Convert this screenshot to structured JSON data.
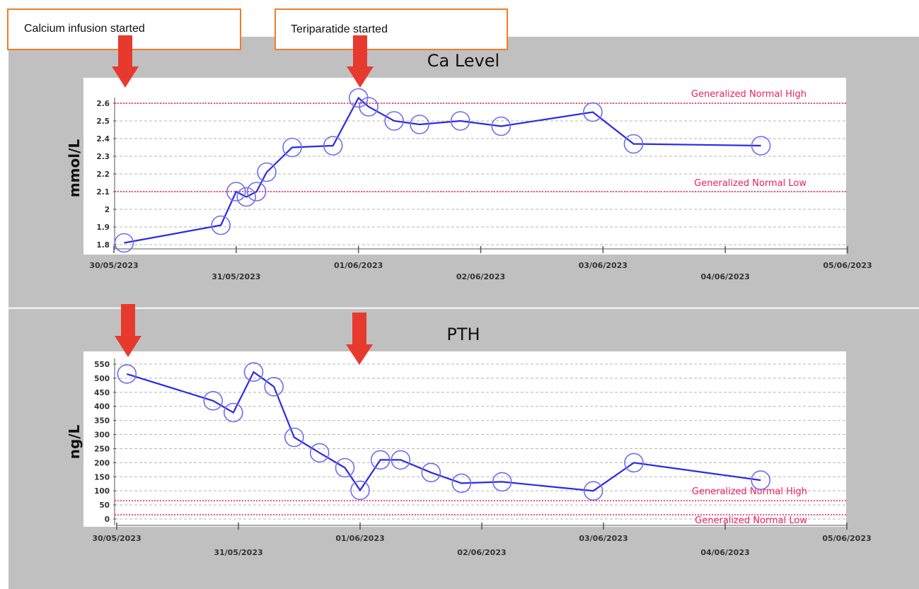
{
  "callouts": [
    "Calcium infusion started",
    "Teriparatide started"
  ],
  "colors": {
    "series": "#2a2ae8",
    "reference": "#ea1f63",
    "arrow": "#e8392f",
    "callout_border": "#ef7d2a",
    "panel_bg": "#c0c0c0"
  },
  "chart_data": [
    {
      "type": "line",
      "title": "Ca Level",
      "ylabel": "mmol/L",
      "xlabel": "",
      "grid": true,
      "xlim": [
        "30/05/2023",
        "05/06/2023"
      ],
      "ylim": [
        1.78,
        2.67
      ],
      "yticks": [
        1.8,
        1.9,
        2,
        2.1,
        2.2,
        2.3,
        2.4,
        2.5,
        2.6
      ],
      "ytick_labels": [
        "1.8",
        "1.9",
        "2",
        "2.1",
        "2.2",
        "2.3",
        "2.4",
        "2.5",
        "2.6"
      ],
      "xticks": [
        "30/05/2023",
        "31/05/2023",
        "01/06/2023",
        "02/06/2023",
        "03/06/2023",
        "04/06/2023",
        "05/06/2023"
      ],
      "reference_lines": [
        {
          "label": "Generalized Normal High",
          "value": 2.6
        },
        {
          "label": "Generalized Normal Low",
          "value": 2.1
        }
      ],
      "series": [
        {
          "x": [
            "30/05/2023 02:00",
            "30/05/2023 21:00",
            "31/05/2023 00:00",
            "31/05/2023 02:00",
            "31/05/2023 04:00",
            "31/05/2023 06:00",
            "31/05/2023 11:00",
            "31/05/2023 19:00",
            "01/06/2023 00:00",
            "01/06/2023 02:00",
            "01/06/2023 07:00",
            "01/06/2023 12:00",
            "01/06/2023 20:00",
            "02/06/2023 04:00",
            "02/06/2023 22:00",
            "03/06/2023 06:00",
            "04/06/2023 07:00"
          ],
          "values": [
            1.81,
            1.91,
            2.1,
            2.07,
            2.1,
            2.21,
            2.35,
            2.36,
            2.63,
            2.58,
            2.5,
            2.48,
            2.5,
            2.47,
            2.55,
            2.37,
            2.36
          ]
        }
      ]
    },
    {
      "type": "line",
      "title": "PTH",
      "ylabel": "ng/L",
      "xlabel": "",
      "grid": true,
      "xlim": [
        "30/05/2023",
        "05/06/2023"
      ],
      "ylim": [
        0,
        560
      ],
      "yticks": [
        0,
        50,
        100,
        150,
        200,
        250,
        300,
        350,
        400,
        450,
        500,
        550
      ],
      "ytick_labels": [
        "0",
        "50",
        "100",
        "150",
        "200",
        "250",
        "300",
        "350",
        "400",
        "450",
        "500",
        "550"
      ],
      "xticks": [
        "30/05/2023",
        "31/05/2023",
        "01/06/2023",
        "02/06/2023",
        "03/06/2023",
        "04/06/2023",
        "05/06/2023"
      ],
      "reference_lines": [
        {
          "label": "Generalized Normal High",
          "value": 65
        },
        {
          "label": "Generalized Normal Low",
          "value": 15
        }
      ],
      "series": [
        {
          "x": [
            "30/05/2023 02:00",
            "30/05/2023 19:00",
            "30/05/2023 23:00",
            "31/05/2023 03:00",
            "31/05/2023 07:00",
            "31/05/2023 11:00",
            "31/05/2023 16:00",
            "31/05/2023 21:00",
            "01/06/2023 00:00",
            "01/06/2023 04:00",
            "01/06/2023 08:00",
            "01/06/2023 14:00",
            "01/06/2023 20:00",
            "02/06/2023 04:00",
            "02/06/2023 22:00",
            "03/06/2023 06:00",
            "04/06/2023 07:00"
          ],
          "values": [
            515,
            420,
            378,
            522,
            470,
            290,
            235,
            182,
            102,
            210,
            210,
            165,
            127,
            132,
            100,
            200,
            138
          ]
        }
      ]
    }
  ]
}
